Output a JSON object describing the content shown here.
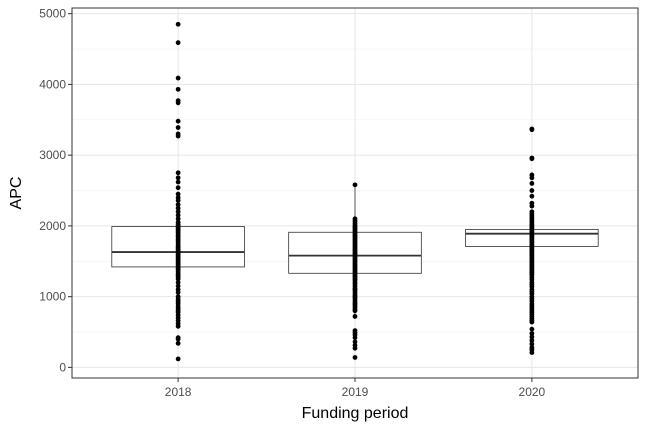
{
  "chart_data": {
    "type": "box",
    "title": "",
    "xlabel": "Funding period",
    "ylabel": "APC",
    "ylim": [
      -150,
      5080
    ],
    "yticks": [
      0,
      1000,
      2000,
      3000,
      4000,
      5000
    ],
    "ytick_labels": [
      "0",
      "1000",
      "2000",
      "3000",
      "4000",
      "5000"
    ],
    "categories": [
      "2018",
      "2019",
      "2020"
    ],
    "grid": true,
    "legend": "none",
    "boxes": [
      {
        "category": "2018",
        "q1": 1420,
        "median": 1630,
        "q3": 1990,
        "whisker_low": 1420,
        "whisker_high": 1990
      },
      {
        "category": "2019",
        "q1": 1330,
        "median": 1580,
        "q3": 1910,
        "whisker_low": 700,
        "whisker_high": 2580
      },
      {
        "category": "2020",
        "q1": 1710,
        "median": 1890,
        "q3": 1950,
        "whisker_low": 1710,
        "whisker_high": 1950
      }
    ],
    "points": [
      {
        "category": "2018",
        "values": [
          4850,
          4590,
          4090,
          3930,
          3770,
          3740,
          3480,
          3390,
          3300,
          3270,
          2750,
          2680,
          2620,
          2540,
          2450,
          2400,
          2360,
          2300,
          2250,
          2200,
          2150,
          2100,
          2050,
          2020,
          2000,
          1980,
          1960,
          1940,
          1920,
          1900,
          1870,
          1850,
          1820,
          1800,
          1780,
          1750,
          1720,
          1700,
          1680,
          1660,
          1640,
          1620,
          1600,
          1580,
          1560,
          1540,
          1520,
          1500,
          1480,
          1460,
          1440,
          1420,
          1400,
          1380,
          1350,
          1320,
          1300,
          1280,
          1250,
          1200,
          1150,
          1100,
          1060,
          1000,
          960,
          930,
          900,
          860,
          830,
          800,
          780,
          740,
          700,
          660,
          620,
          580,
          420,
          400,
          340,
          120
        ]
      },
      {
        "category": "2019",
        "values": [
          2580,
          2100,
          2070,
          2040,
          2010,
          1990,
          1970,
          1950,
          1930,
          1910,
          1890,
          1870,
          1850,
          1830,
          1810,
          1790,
          1770,
          1750,
          1730,
          1710,
          1690,
          1670,
          1650,
          1630,
          1610,
          1590,
          1570,
          1550,
          1530,
          1510,
          1490,
          1470,
          1450,
          1430,
          1410,
          1390,
          1370,
          1350,
          1330,
          1310,
          1290,
          1270,
          1250,
          1230,
          1200,
          1180,
          1150,
          1120,
          1100,
          1080,
          1050,
          1020,
          1000,
          980,
          950,
          920,
          900,
          880,
          850,
          820,
          800,
          720,
          520,
          490,
          460,
          420,
          360,
          310,
          270,
          140
        ]
      },
      {
        "category": "2020",
        "values": [
          3370,
          3360,
          2960,
          2950,
          2720,
          2680,
          2600,
          2500,
          2420,
          2320,
          2280,
          2200,
          2170,
          2140,
          2110,
          2080,
          2050,
          2020,
          2000,
          1980,
          1960,
          1940,
          1920,
          1900,
          1880,
          1860,
          1840,
          1820,
          1800,
          1780,
          1760,
          1740,
          1720,
          1700,
          1680,
          1660,
          1640,
          1620,
          1600,
          1580,
          1560,
          1540,
          1520,
          1500,
          1480,
          1460,
          1440,
          1420,
          1400,
          1380,
          1360,
          1340,
          1320,
          1300,
          1270,
          1240,
          1200,
          1170,
          1140,
          1100,
          1070,
          1040,
          1000,
          970,
          940,
          900,
          870,
          840,
          810,
          780,
          750,
          720,
          690,
          660,
          640,
          540,
          480,
          430,
          380,
          330,
          280,
          250,
          210
        ]
      }
    ]
  }
}
